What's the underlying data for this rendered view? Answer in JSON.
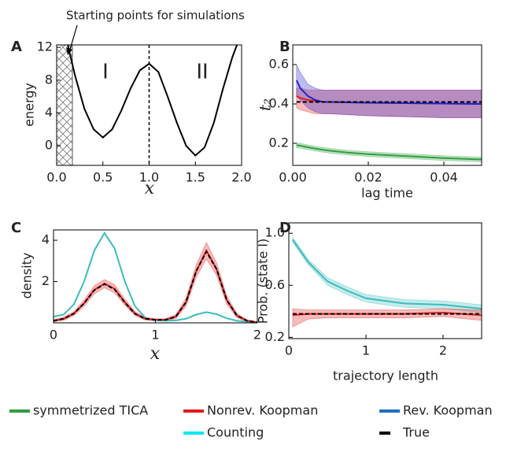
{
  "charts": [
    {
      "type": "line",
      "panel": "A",
      "ylabel": "energy",
      "xlabel": "x",
      "annotation": "Starting points for simulations",
      "region_labels": [
        "I",
        "II"
      ],
      "shade_x": [
        0,
        0.17
      ],
      "vline_x": 1,
      "xlim": [
        0,
        2
      ],
      "ylim": [
        -2.4,
        12.3
      ],
      "xticks": [
        {
          "value": 0,
          "label": "0.0"
        },
        {
          "value": 0.5,
          "label": "0.5"
        },
        {
          "value": 1,
          "label": "1.0"
        },
        {
          "value": 1.5,
          "label": "1.5"
        },
        {
          "value": 2,
          "label": "2.0"
        }
      ],
      "yticks": [
        0,
        4,
        8,
        12
      ],
      "x": [
        0.12,
        0.2,
        0.3,
        0.4,
        0.5,
        0.6,
        0.7,
        0.8,
        0.9,
        1.0,
        1.1,
        1.2,
        1.3,
        1.4,
        1.5,
        1.6,
        1.7,
        1.8,
        1.9,
        1.95
      ],
      "series": [
        {
          "color": "#000000",
          "values": [
            12.3,
            8.5,
            4.5,
            2,
            1,
            2,
            4.3,
            7,
            9.2,
            10,
            9,
            6,
            2.8,
            0,
            -1.2,
            -0.2,
            2.8,
            7,
            10.8,
            12.3
          ]
        }
      ]
    },
    {
      "type": "line",
      "panel": "B",
      "ylabel": "t₂",
      "xlabel": "lag time",
      "xlim": [
        0,
        0.05
      ],
      "ylim": [
        0.088,
        0.7
      ],
      "xticks": [
        {
          "value": 0,
          "label": "0.00"
        },
        {
          "value": 0.02,
          "label": "0.02"
        },
        {
          "value": 0.04,
          "label": "0.04"
        }
      ],
      "yticks": [
        0.2,
        0.4,
        0.6
      ],
      "x": [
        0.001,
        0.002,
        0.004,
        0.006,
        0.008,
        0.01,
        0.015,
        0.02,
        0.03,
        0.04,
        0.05
      ],
      "series": [
        {
          "name": "symmetrized TICA",
          "color": "#2e9e3e",
          "values": [
            0.19,
            0.188,
            0.18,
            0.173,
            0.167,
            0.162,
            0.152,
            0.145,
            0.135,
            0.125,
            0.118
          ],
          "lower": [
            0.178,
            0.176,
            0.168,
            0.161,
            0.155,
            0.15,
            0.14,
            0.133,
            0.123,
            0.113,
            0.106
          ],
          "upper": [
            0.202,
            0.2,
            0.192,
            0.185,
            0.179,
            0.174,
            0.164,
            0.157,
            0.147,
            0.137,
            0.13
          ]
        },
        {
          "name": "Nonrev. Koopman",
          "color": "#e41a1c",
          "values": [
            0.44,
            0.43,
            0.42,
            0.415,
            0.41,
            0.41,
            0.408,
            0.406,
            0.404,
            0.402,
            0.4
          ],
          "lower": [
            0.38,
            0.37,
            0.36,
            0.35,
            0.35,
            0.35,
            0.345,
            0.34,
            0.335,
            0.33,
            0.33
          ],
          "upper": [
            0.48,
            0.48,
            0.47,
            0.47,
            0.47,
            0.47,
            0.47,
            0.47,
            0.47,
            0.47,
            0.47
          ]
        },
        {
          "name": "Rev. Koopman",
          "color": "#2222cc",
          "values": [
            0.52,
            0.48,
            0.44,
            0.42,
            0.41,
            0.41,
            0.408,
            0.406,
            0.404,
            0.402,
            0.4
          ],
          "lower": [
            0.44,
            0.42,
            0.38,
            0.36,
            0.35,
            0.35,
            0.345,
            0.34,
            0.335,
            0.33,
            0.33
          ],
          "upper": [
            0.6,
            0.56,
            0.5,
            0.48,
            0.47,
            0.47,
            0.47,
            0.47,
            0.47,
            0.47,
            0.47
          ]
        },
        {
          "name": "True",
          "color": "#000000",
          "dash": true,
          "values": [
            0.41,
            0.41,
            0.41,
            0.41,
            0.41,
            0.41,
            0.41,
            0.41,
            0.41,
            0.41,
            0.41
          ]
        }
      ]
    },
    {
      "type": "line",
      "panel": "C",
      "ylabel": "density",
      "xlabel": "x",
      "xlim": [
        0,
        2
      ],
      "ylim": [
        0,
        4.5
      ],
      "xticks": [
        0,
        1,
        2
      ],
      "yticks": [
        2,
        4
      ],
      "x": [
        0,
        0.1,
        0.2,
        0.3,
        0.4,
        0.5,
        0.6,
        0.7,
        0.8,
        0.9,
        1.0,
        1.1,
        1.2,
        1.3,
        1.4,
        1.5,
        1.6,
        1.7,
        1.8,
        1.9,
        2.0
      ],
      "series": [
        {
          "name": "Counting",
          "color": "#3bbcbc",
          "values": [
            0.3,
            0.4,
            0.9,
            2.0,
            3.5,
            4.35,
            3.6,
            2.0,
            0.8,
            0.25,
            0.12,
            0.1,
            0.12,
            0.2,
            0.4,
            0.52,
            0.42,
            0.22,
            0.1,
            0.05,
            0.02
          ]
        },
        {
          "name": "Nonrev. Koopman",
          "color": "#e41a1c",
          "values": [
            0.1,
            0.2,
            0.45,
            0.95,
            1.6,
            1.9,
            1.65,
            1.0,
            0.45,
            0.2,
            0.15,
            0.15,
            0.3,
            1.0,
            2.5,
            3.5,
            2.6,
            1.1,
            0.35,
            0.1,
            0.03
          ],
          "lower": [
            0.05,
            0.12,
            0.35,
            0.8,
            1.4,
            1.7,
            1.45,
            0.85,
            0.35,
            0.13,
            0.1,
            0.1,
            0.2,
            0.8,
            2.2,
            3.1,
            2.3,
            0.9,
            0.25,
            0.05,
            0.01
          ],
          "upper": [
            0.15,
            0.28,
            0.55,
            1.1,
            1.8,
            2.1,
            1.85,
            1.15,
            0.55,
            0.27,
            0.2,
            0.2,
            0.4,
            1.2,
            2.8,
            3.9,
            2.9,
            1.3,
            0.45,
            0.15,
            0.05
          ]
        },
        {
          "name": "True",
          "color": "#000000",
          "dash": true,
          "values": [
            0.1,
            0.2,
            0.45,
            0.95,
            1.58,
            1.88,
            1.62,
            0.98,
            0.44,
            0.2,
            0.15,
            0.15,
            0.3,
            1.0,
            2.5,
            3.45,
            2.6,
            1.1,
            0.35,
            0.1,
            0.03
          ]
        }
      ]
    },
    {
      "type": "line",
      "panel": "D",
      "ylabel": "Prob. (state I)",
      "xlabel": "trajectory length",
      "xlim": [
        0,
        2.5
      ],
      "ylim": [
        0.19,
        1.08
      ],
      "xticks": [
        0,
        1,
        2
      ],
      "yticks": [
        0.2,
        0.6,
        {
          "value": 1,
          "label": "1.0"
        }
      ],
      "x": [
        0.05,
        0.25,
        0.5,
        0.75,
        1,
        1.25,
        1.5,
        2,
        2.5
      ],
      "series": [
        {
          "name": "Counting",
          "color": "#3bbcbc",
          "values": [
            0.95,
            0.78,
            0.63,
            0.56,
            0.5,
            0.48,
            0.46,
            0.45,
            0.42
          ],
          "lower": [
            0.93,
            0.76,
            0.6,
            0.53,
            0.47,
            0.45,
            0.43,
            0.42,
            0.39
          ],
          "upper": [
            0.97,
            0.8,
            0.66,
            0.59,
            0.53,
            0.51,
            0.49,
            0.48,
            0.45
          ]
        },
        {
          "name": "Nonrev. Koopman",
          "color": "#e41a1c",
          "values": [
            0.37,
            0.38,
            0.38,
            0.38,
            0.38,
            0.38,
            0.38,
            0.39,
            0.37
          ],
          "lower": [
            0.28,
            0.34,
            0.35,
            0.35,
            0.35,
            0.35,
            0.35,
            0.36,
            0.33
          ],
          "upper": [
            0.42,
            0.41,
            0.41,
            0.41,
            0.41,
            0.41,
            0.41,
            0.42,
            0.41
          ]
        },
        {
          "name": "True",
          "color": "#000000",
          "dash": true,
          "values": [
            0.38,
            0.38,
            0.38,
            0.38,
            0.38,
            0.38,
            0.38,
            0.38,
            0.38
          ]
        }
      ]
    }
  ],
  "legend": [
    {
      "name": "symmetrized TICA",
      "color": "#2e9e3e"
    },
    {
      "name": "Nonrev. Koopman",
      "color": "#e41a1c"
    },
    {
      "name": "Rev. Koopman",
      "color": "#1f6fbf"
    },
    {
      "name": "Counting",
      "color": "#00e8f0"
    },
    {
      "name": "True",
      "color": "#000000"
    }
  ]
}
